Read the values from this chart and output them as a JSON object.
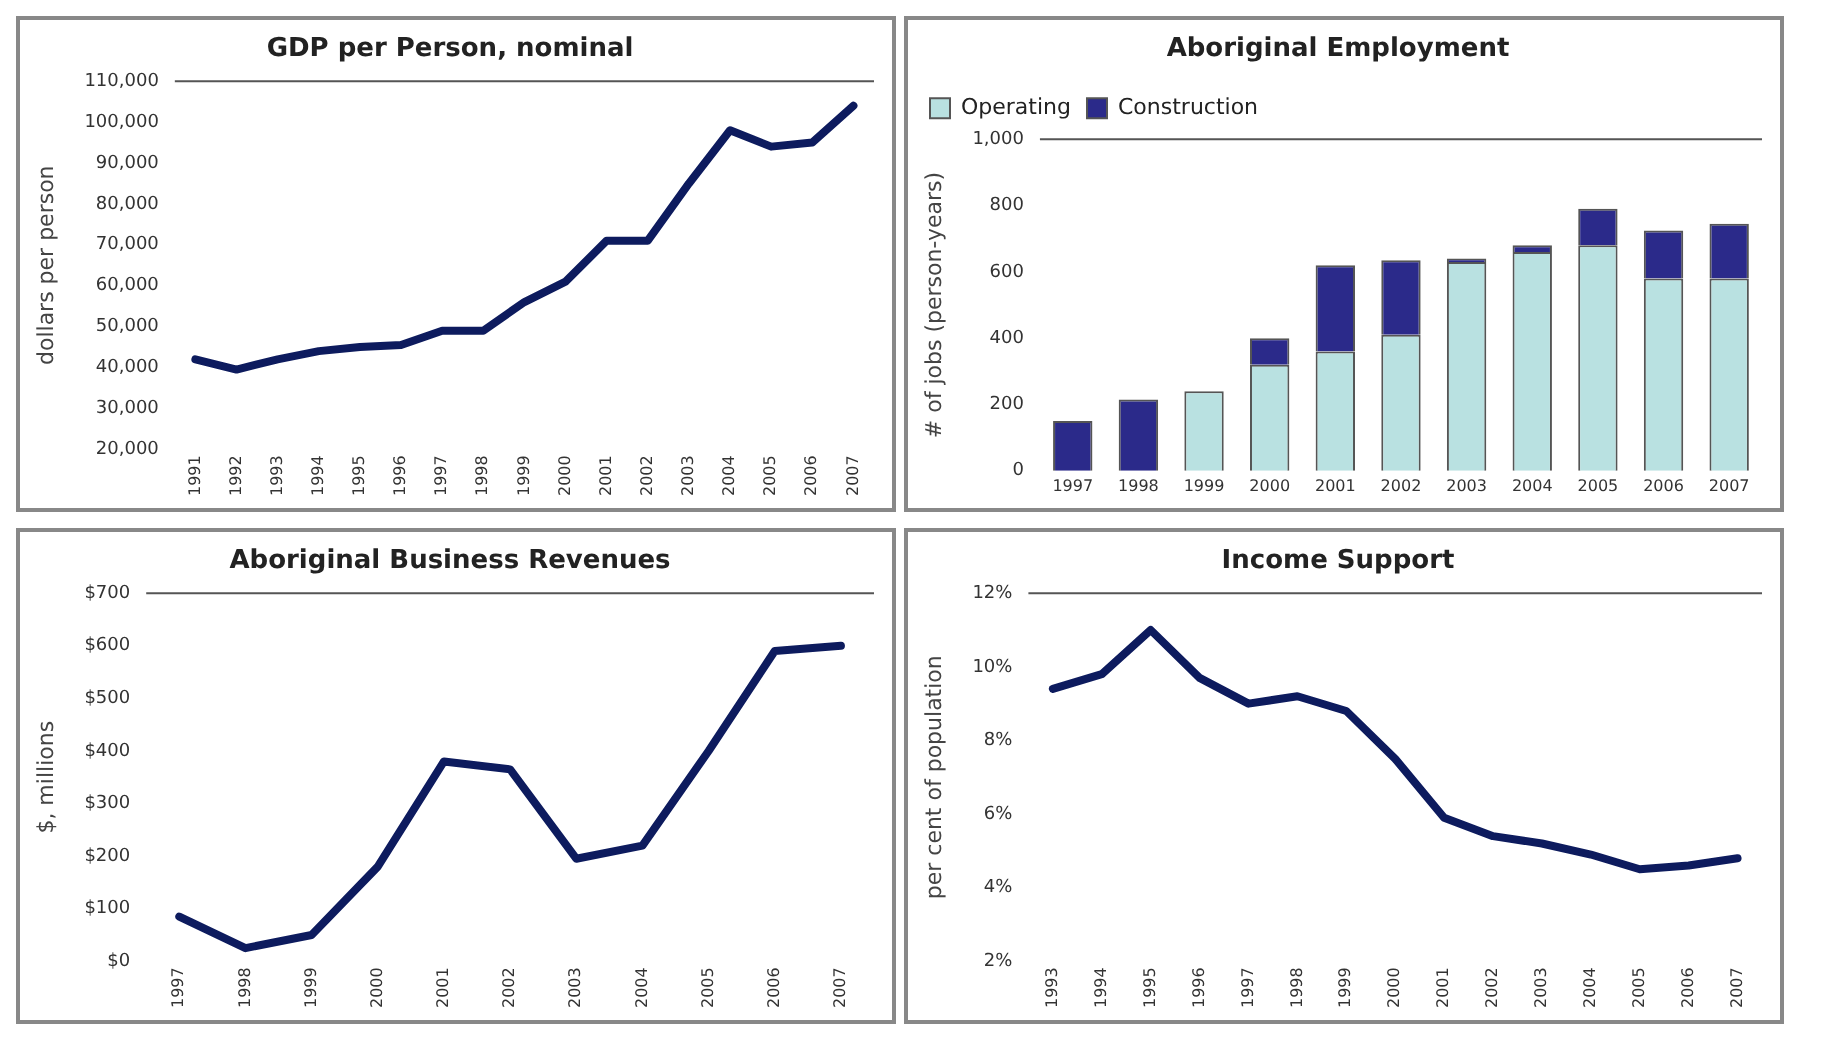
{
  "chart_data": [
    {
      "type": "line",
      "title": "GDP per Person, nominal",
      "ylabel": "dollars per person",
      "categories": [
        "1991",
        "1992",
        "1993",
        "1994",
        "1995",
        "1996",
        "1997",
        "1998",
        "1999",
        "2000",
        "2001",
        "2002",
        "2003",
        "2004",
        "2005",
        "2006",
        "2007"
      ],
      "series": [
        {
          "color": "#0d1b5e",
          "values": [
            42000,
            39500,
            42000,
            44000,
            45000,
            45500,
            49000,
            49000,
            56000,
            61000,
            71000,
            71000,
            85000,
            98000,
            94000,
            95000,
            104000
          ]
        }
      ],
      "ylim": [
        20000,
        110000
      ],
      "yticks": [
        {
          "value": 20000,
          "label": "20,000"
        },
        {
          "value": 30000,
          "label": "30,000"
        },
        {
          "value": 40000,
          "label": "40,000"
        },
        {
          "value": 50000,
          "label": "50,000"
        },
        {
          "value": 60000,
          "label": "60,000"
        },
        {
          "value": 70000,
          "label": "70,000"
        },
        {
          "value": 80000,
          "label": "80,000"
        },
        {
          "value": 90000,
          "label": "90,000"
        },
        {
          "value": 100000,
          "label": "100,000"
        },
        {
          "value": 110000,
          "label": "110,000"
        }
      ],
      "grid": false,
      "legend": false,
      "marker": "none",
      "line_style": "solid"
    },
    {
      "type": "bar",
      "title": "Aboriginal Employment",
      "ylabel": "# of jobs (person-years)",
      "stacked": true,
      "categories": [
        "1997",
        "1998",
        "1999",
        "2000",
        "2001",
        "2002",
        "2003",
        "2004",
        "2005",
        "2006",
        "2007"
      ],
      "series": [
        {
          "name": "Operating",
          "color": "#b9e1e1",
          "values": [
            0,
            0,
            240,
            320,
            360,
            410,
            630,
            660,
            680,
            580,
            580
          ]
        },
        {
          "name": "Construction",
          "color": "#2b2a8a",
          "values": [
            150,
            215,
            0,
            80,
            260,
            225,
            10,
            20,
            110,
            145,
            165
          ]
        }
      ],
      "ylim": [
        0,
        1000
      ],
      "yticks": [
        0,
        200,
        400,
        600,
        800,
        {
          "value": 1000,
          "label": "1,000"
        }
      ],
      "grid": false,
      "legend": "top"
    },
    {
      "type": "line",
      "title": "Aboriginal Business Revenues",
      "ylabel": "$, millions",
      "categories": [
        "1997",
        "1998",
        "1999",
        "2000",
        "2001",
        "2002",
        "2003",
        "2004",
        "2005",
        "2006",
        "2007"
      ],
      "series": [
        {
          "color": "#0d1b5e",
          "values": [
            85,
            25,
            50,
            180,
            380,
            365,
            195,
            220,
            400,
            590,
            600
          ]
        }
      ],
      "ylim": [
        0,
        700
      ],
      "yticks": [
        {
          "value": 0,
          "label": "$0"
        },
        {
          "value": 100,
          "label": "$100"
        },
        {
          "value": 200,
          "label": "$200"
        },
        {
          "value": 300,
          "label": "$300"
        },
        {
          "value": 400,
          "label": "$400"
        },
        {
          "value": 500,
          "label": "$500"
        },
        {
          "value": 600,
          "label": "$600"
        },
        {
          "value": 700,
          "label": "$700"
        }
      ],
      "grid": false,
      "legend": false,
      "marker": "none",
      "line_style": "solid"
    },
    {
      "type": "line",
      "title": "Income Support",
      "ylabel": "per cent of population",
      "categories": [
        "1993",
        "1994",
        "1995",
        "1996",
        "1997",
        "1998",
        "1999",
        "2000",
        "2001",
        "2002",
        "2003",
        "2004",
        "2005",
        "2006",
        "2007"
      ],
      "series": [
        {
          "color": "#0d1b5e",
          "values": [
            9.4,
            9.8,
            11.0,
            9.7,
            9.0,
            9.2,
            8.8,
            7.5,
            5.9,
            5.4,
            5.2,
            4.9,
            4.5,
            4.6,
            4.8
          ]
        }
      ],
      "ylim": [
        2,
        12
      ],
      "yticks": [
        {
          "value": 2,
          "label": "2%"
        },
        {
          "value": 4,
          "label": "4%"
        },
        {
          "value": 6,
          "label": "6%"
        },
        {
          "value": 8,
          "label": "8%"
        },
        {
          "value": 10,
          "label": "10%"
        },
        {
          "value": 12,
          "label": "12%"
        }
      ],
      "grid": false,
      "legend": false,
      "marker": "none",
      "line_style": "solid"
    }
  ]
}
